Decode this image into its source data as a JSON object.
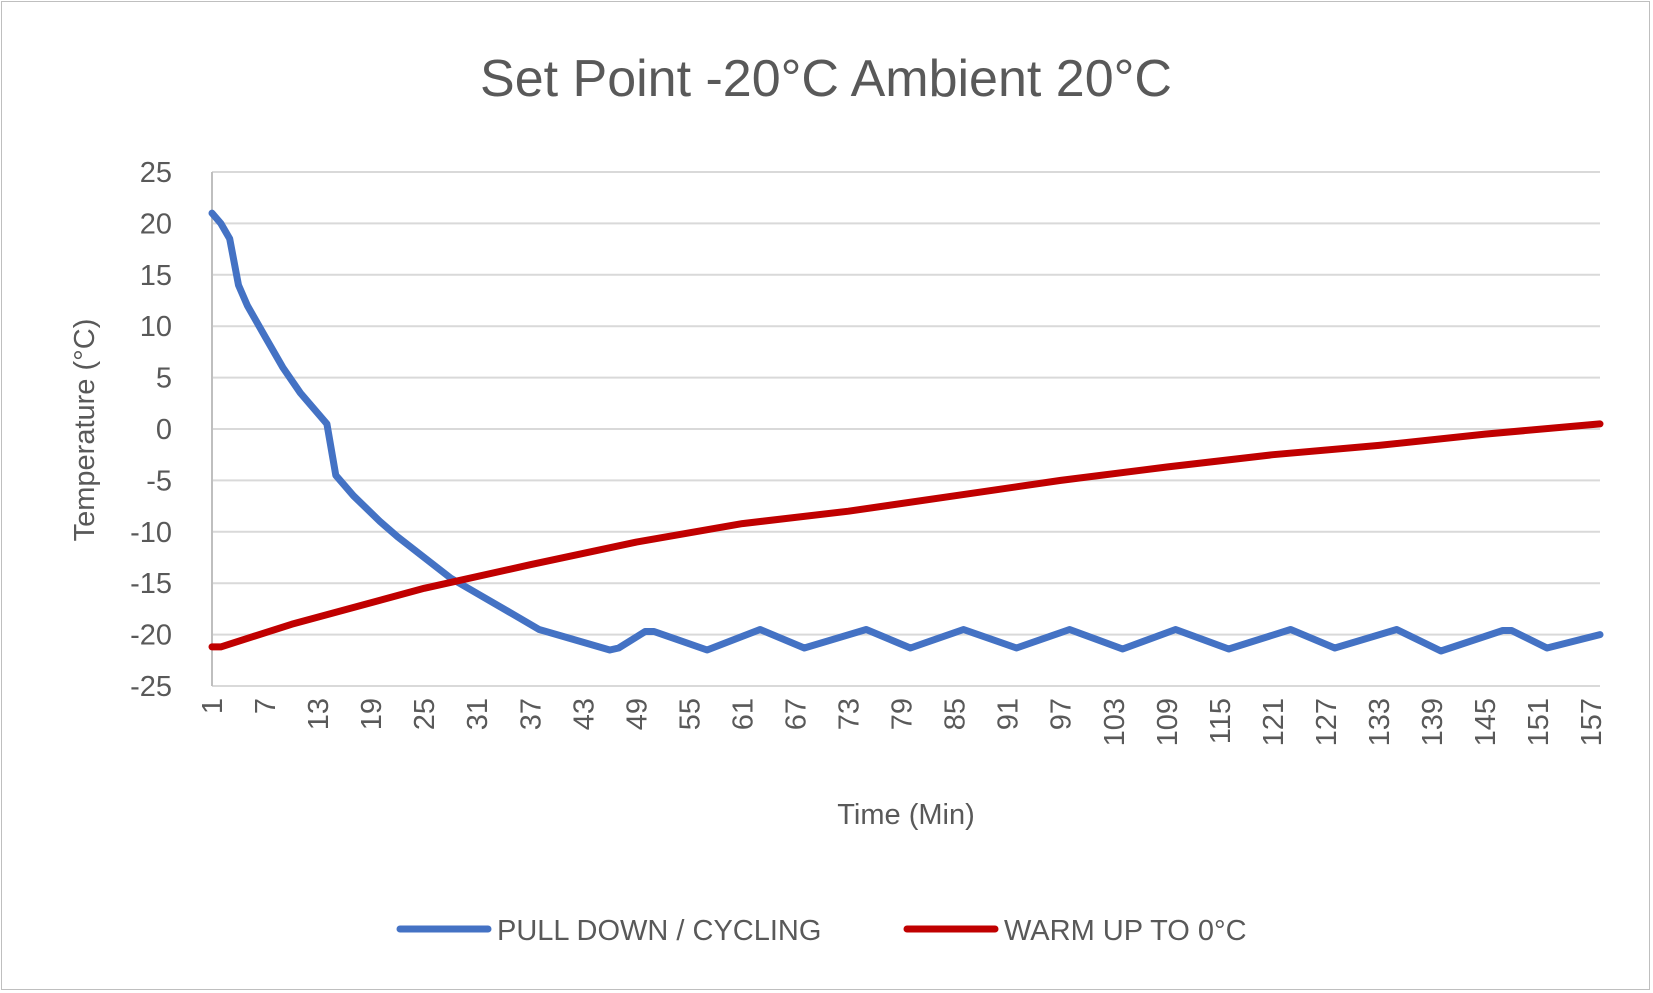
{
  "chart_data": {
    "type": "line",
    "title": "Set Point -20°C Ambient 20°C",
    "xlabel": "Time (Min)",
    "ylabel": "Temperature (°C)",
    "xlim": [
      1,
      158
    ],
    "ylim": [
      -25,
      25
    ],
    "y_ticks": [
      25,
      20,
      15,
      10,
      5,
      0,
      -5,
      -10,
      -15,
      -20,
      -25
    ],
    "x_ticks": [
      1,
      7,
      13,
      19,
      25,
      31,
      37,
      43,
      49,
      55,
      61,
      67,
      73,
      79,
      85,
      91,
      97,
      103,
      109,
      115,
      121,
      127,
      133,
      139,
      145,
      151,
      157
    ],
    "grid": true,
    "legend_position": "bottom",
    "series": [
      {
        "name": "PULL DOWN / CYCLING",
        "color": "#4472C4",
        "x": [
          1,
          2,
          3,
          4,
          5,
          7,
          9,
          11,
          13,
          14,
          15,
          17,
          20,
          22,
          25,
          28,
          31,
          35,
          38,
          42,
          46,
          47,
          50,
          51,
          57,
          63,
          68,
          75,
          80,
          86,
          92,
          98,
          104,
          110,
          116,
          123,
          128,
          135,
          140,
          147,
          148,
          152,
          158
        ],
        "y": [
          21,
          20,
          18.5,
          14,
          12,
          9,
          6,
          3.5,
          1.5,
          0.5,
          -4.5,
          -6.5,
          -9,
          -10.5,
          -12.5,
          -14.5,
          -16,
          -18,
          -19.5,
          -20.5,
          -21.5,
          -21.3,
          -19.7,
          -19.7,
          -21.5,
          -19.5,
          -21.3,
          -19.5,
          -21.3,
          -19.5,
          -21.3,
          -19.5,
          -21.4,
          -19.5,
          -21.4,
          -19.5,
          -21.3,
          -19.5,
          -21.6,
          -19.6,
          -19.6,
          -21.3,
          -20
        ]
      },
      {
        "name": "WARM UP TO 0°C",
        "color": "#C00000",
        "x": [
          1,
          2,
          10,
          25,
          37,
          49,
          61,
          73,
          85,
          97,
          109,
          121,
          133,
          145,
          158
        ],
        "y": [
          -21.2,
          -21.2,
          -19,
          -15.5,
          -13.2,
          -11,
          -9.2,
          -8,
          -6.5,
          -5,
          -3.7,
          -2.5,
          -1.6,
          -0.5,
          0.5
        ]
      }
    ]
  }
}
